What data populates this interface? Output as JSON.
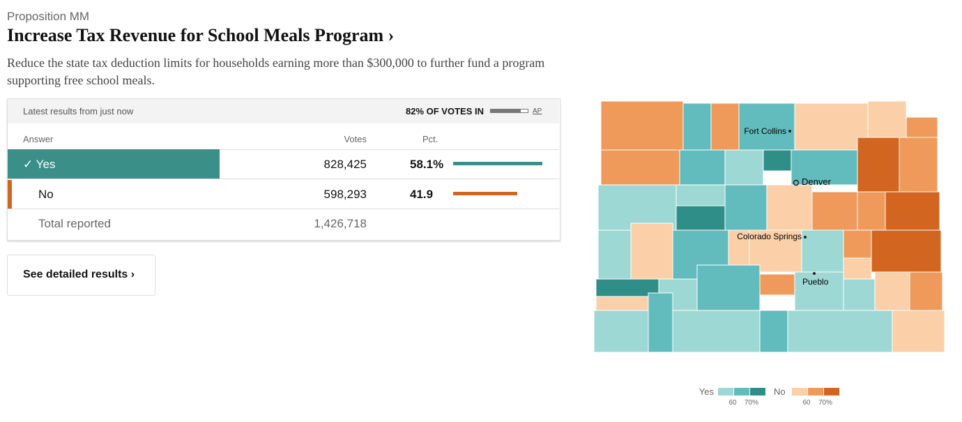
{
  "header": {
    "kicker": "Proposition MM",
    "title": "Increase Tax Revenue for School Meals Program ›",
    "description": "Reduce the state tax deduction limits for households earning more than $300,000 to further fund a program supporting free school meals."
  },
  "table": {
    "updated": "Latest results from just now",
    "reporting": {
      "label": "82% OF VOTES IN",
      "value": 82
    },
    "source": "AP",
    "columns": [
      "Answer",
      "Votes",
      "Pct."
    ],
    "rows": [
      {
        "answer": "✓ Yes",
        "votes": "828,425",
        "pct": 58.1,
        "pct_label": "58.1%",
        "color": "#3a8f89"
      },
      {
        "answer": "No",
        "votes": "598,293",
        "pct": 41.9,
        "pct_label": "41.9",
        "color": "#d2651f"
      }
    ],
    "total": {
      "label": "Total reported",
      "votes": "1,426,718"
    }
  },
  "button": "See detailed results ›",
  "map": {
    "cities": [
      "Fort Collins",
      "Denver",
      "Colorado Springs",
      "Pueblo"
    ],
    "legend": {
      "yes": "Yes",
      "no": "No",
      "yes_ticks": [
        "60",
        "70%"
      ],
      "no_ticks": [
        "60",
        "70%"
      ]
    }
  }
}
